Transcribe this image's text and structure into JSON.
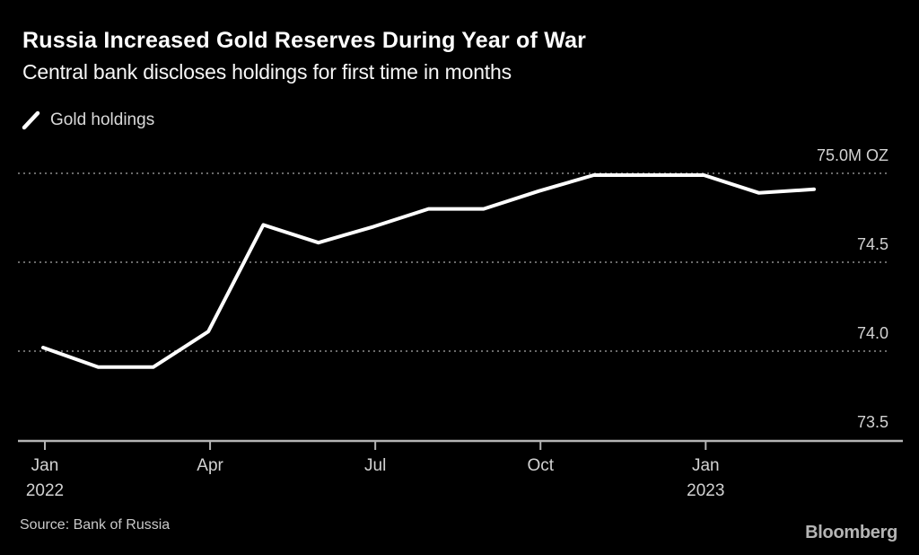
{
  "header": {
    "title": "Russia Increased Gold Reserves During Year of War",
    "subtitle": "Central bank discloses holdings for first time in months"
  },
  "legend": {
    "label": "Gold holdings"
  },
  "footer": {
    "source": "Source: Bank of Russia",
    "brand": "Bloomberg"
  },
  "colors": {
    "background": "#000000",
    "line": "#ffffff",
    "gridline": "#6a6a6a",
    "axis": "#b4b4b4",
    "tick_label": "#d2d2d2"
  },
  "chart_data": {
    "type": "line",
    "title": "Russia Increased Gold Reserves During Year of War",
    "subtitle": "Central bank discloses holdings for first time in months",
    "unit": "M OZ",
    "x": [
      "Jan 2022",
      "Feb 2022",
      "Mar 2022",
      "Apr 2022",
      "May 2022",
      "Jun 2022",
      "Jul 2022",
      "Aug 2022",
      "Sep 2022",
      "Oct 2022",
      "Nov 2022",
      "Dec 2022",
      "Jan 2023",
      "Feb 2023",
      "Mar 2023"
    ],
    "series": [
      {
        "name": "Gold holdings",
        "values": [
          74.02,
          73.91,
          73.91,
          74.11,
          74.71,
          74.61,
          74.7,
          74.8,
          74.8,
          74.9,
          74.99,
          74.99,
          74.99,
          74.89,
          74.91
        ]
      }
    ],
    "ylabel": "",
    "xlabel": "",
    "ylim": [
      73.5,
      75.15
    ],
    "y_gridlines": [
      75.0,
      74.5,
      74.0
    ],
    "y_ticks": [
      {
        "label": "75.0M OZ",
        "value": 75.0
      },
      {
        "label": "74.5",
        "value": 74.5
      },
      {
        "label": "74.0",
        "value": 74.0
      },
      {
        "label": "73.5",
        "value": 73.5
      }
    ],
    "x_ticks": [
      {
        "label": "Jan",
        "sublabel": "2022",
        "month_index": 0
      },
      {
        "label": "Apr",
        "sublabel": "",
        "month_index": 3
      },
      {
        "label": "Jul",
        "sublabel": "",
        "month_index": 6
      },
      {
        "label": "Oct",
        "sublabel": "",
        "month_index": 9
      },
      {
        "label": "Jan",
        "sublabel": "2023",
        "month_index": 12
      }
    ],
    "grid": "dotted-horizontal",
    "legend_position": "top-left",
    "source": "Source: Bank of Russia"
  }
}
